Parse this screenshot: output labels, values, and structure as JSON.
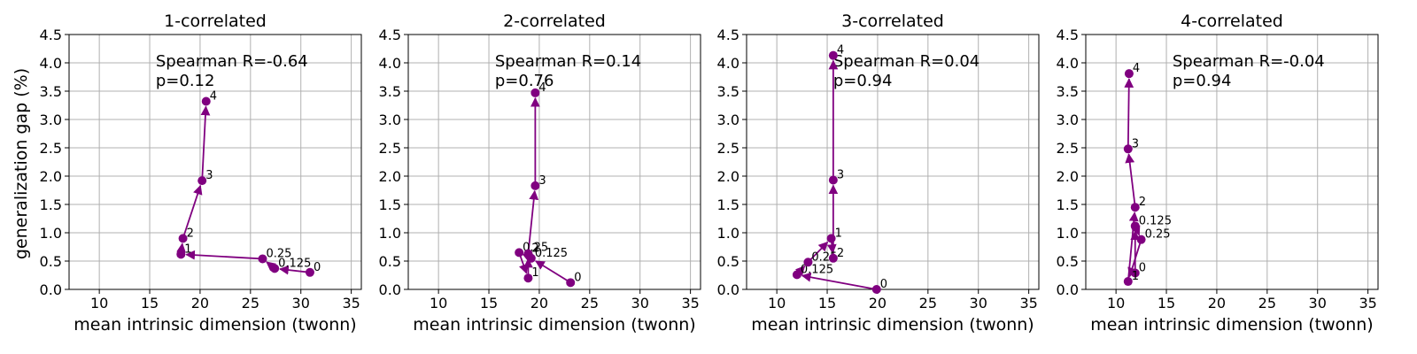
{
  "figure": {
    "ylabel": "generalization gap (%)",
    "xlabel": "mean intrinsic dimension (twonn)"
  },
  "style": {
    "series_color": "#800080",
    "grid_color": "#b0b0b0",
    "axes_color": "#000000"
  },
  "chart_data": [
    {
      "type": "line",
      "title": "1-correlated",
      "xlabel": "mean intrinsic dimension (twonn)",
      "ylabel": "generalization gap (%)",
      "xlim": [
        7,
        36
      ],
      "ylim": [
        0,
        4.5
      ],
      "xticks": [
        10,
        15,
        20,
        25,
        30,
        35
      ],
      "yticks": [
        0.0,
        0.5,
        1.0,
        1.5,
        2.0,
        2.5,
        3.0,
        3.5,
        4.0,
        4.5
      ],
      "grid": true,
      "annotation": [
        "Spearman R=-0.64",
        "p=0.12"
      ],
      "points": [
        {
          "label": "0",
          "x": 30.9,
          "y": 0.3
        },
        {
          "label": "0.125",
          "x": 27.4,
          "y": 0.37
        },
        {
          "label": "0.25",
          "x": 26.2,
          "y": 0.54
        },
        {
          "label": "1",
          "x": 18.1,
          "y": 0.62
        },
        {
          "label": "2",
          "x": 18.3,
          "y": 0.9
        },
        {
          "label": "3",
          "x": 20.2,
          "y": 1.92
        },
        {
          "label": "4",
          "x": 20.6,
          "y": 3.32
        }
      ],
      "path": [
        "0",
        "0.125",
        "0.25",
        "1",
        "2",
        "3",
        "4"
      ]
    },
    {
      "type": "line",
      "title": "2-correlated",
      "xlabel": "mean intrinsic dimension (twonn)",
      "ylabel": "",
      "xlim": [
        7,
        36
      ],
      "ylim": [
        0,
        4.5
      ],
      "xticks": [
        10,
        15,
        20,
        25,
        30,
        35
      ],
      "yticks": [
        0.0,
        0.5,
        1.0,
        1.5,
        2.0,
        2.5,
        3.0,
        3.5,
        4.0,
        4.5
      ],
      "grid": true,
      "annotation": [
        "Spearman R=0.14",
        "p=0.76"
      ],
      "points": [
        {
          "label": "0",
          "x": 23.1,
          "y": 0.12
        },
        {
          "label": "0.125",
          "x": 19.2,
          "y": 0.55
        },
        {
          "label": "0.25",
          "x": 18.0,
          "y": 0.65
        },
        {
          "label": "1",
          "x": 18.9,
          "y": 0.2
        },
        {
          "label": "2",
          "x": 18.9,
          "y": 0.63
        },
        {
          "label": "3",
          "x": 19.6,
          "y": 1.83
        },
        {
          "label": "4",
          "x": 19.6,
          "y": 3.47
        }
      ],
      "path": [
        "0",
        "0.125",
        "0.25",
        "1",
        "2",
        "3",
        "4"
      ]
    },
    {
      "type": "line",
      "title": "3-correlated",
      "xlabel": "mean intrinsic dimension (twonn)",
      "ylabel": "",
      "xlim": [
        7,
        36
      ],
      "ylim": [
        0,
        4.5
      ],
      "xticks": [
        10,
        15,
        20,
        25,
        30,
        35
      ],
      "yticks": [
        0.0,
        0.5,
        1.0,
        1.5,
        2.0,
        2.5,
        3.0,
        3.5,
        4.0,
        4.5
      ],
      "grid": true,
      "annotation": [
        "Spearman R=0.04",
        "p=0.94"
      ],
      "points": [
        {
          "label": "0",
          "x": 19.9,
          "y": 0.0
        },
        {
          "label": "0.125",
          "x": 12.0,
          "y": 0.26
        },
        {
          "label": "0.25",
          "x": 13.1,
          "y": 0.48
        },
        {
          "label": "1",
          "x": 15.4,
          "y": 0.9
        },
        {
          "label": "2",
          "x": 15.6,
          "y": 0.55
        },
        {
          "label": "3",
          "x": 15.6,
          "y": 1.93
        },
        {
          "label": "4",
          "x": 15.6,
          "y": 4.13
        }
      ],
      "path": [
        "0",
        "0.125",
        "0.25",
        "1",
        "2",
        "3",
        "4"
      ]
    },
    {
      "type": "line",
      "title": "4-correlated",
      "xlabel": "mean intrinsic dimension (twonn)",
      "ylabel": "",
      "xlim": [
        7,
        36
      ],
      "ylim": [
        0,
        4.5
      ],
      "xticks": [
        10,
        15,
        20,
        25,
        30,
        35
      ],
      "yticks": [
        0.0,
        0.5,
        1.0,
        1.5,
        2.0,
        2.5,
        3.0,
        3.5,
        4.0,
        4.5
      ],
      "grid": true,
      "annotation": [
        "Spearman R=-0.04",
        "p=0.94"
      ],
      "points": [
        {
          "label": "0",
          "x": 11.9,
          "y": 0.29
        },
        {
          "label": "0.125",
          "x": 11.9,
          "y": 1.12
        },
        {
          "label": "0.25",
          "x": 12.5,
          "y": 0.88
        },
        {
          "label": "1",
          "x": 11.2,
          "y": 0.14
        },
        {
          "label": "2",
          "x": 11.9,
          "y": 1.45
        },
        {
          "label": "3",
          "x": 11.2,
          "y": 2.48
        },
        {
          "label": "4",
          "x": 11.3,
          "y": 3.81
        }
      ],
      "path": [
        "0",
        "0.125",
        "0.25",
        "1",
        "2",
        "3",
        "4"
      ]
    }
  ]
}
